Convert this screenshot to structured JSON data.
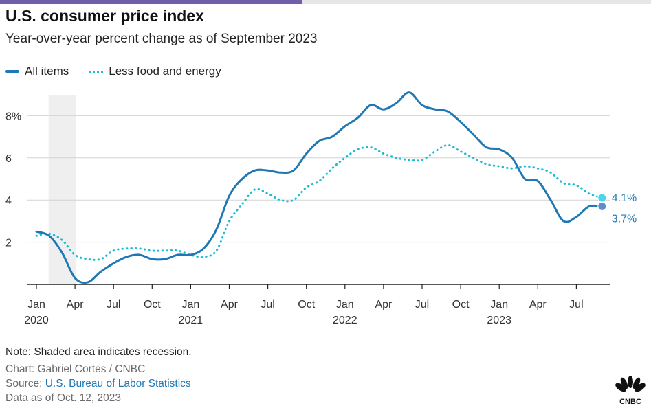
{
  "header": {
    "title": "U.S. consumer price index",
    "subtitle": "Year-over-year percent change as of September 2023"
  },
  "legend": {
    "all_items": "All items",
    "core": "Less food and energy"
  },
  "footer": {
    "note": "Note: Shaded area indicates recession.",
    "credit": "Chart: Gabriel Cortes / CNBC",
    "source_prefix": "Source: ",
    "source_link": "U.S. Bureau of Labor Statistics",
    "as_of": "Data as of Oct. 12, 2023"
  },
  "logo": {
    "text": "CNBC",
    "icon": "cnbc-peacock-icon"
  },
  "colors": {
    "all_items": "#1f78b4",
    "core": "#1bbcd6",
    "recession": "#efefef",
    "grid": "#d4d4d4"
  },
  "chart_data": {
    "type": "line",
    "ylim": [
      0,
      9
    ],
    "yticks": [
      2,
      4,
      6,
      8
    ],
    "ytick_labels": [
      "2",
      "4",
      "6",
      "8%"
    ],
    "x": [
      "2020-01",
      "2020-02",
      "2020-03",
      "2020-04",
      "2020-05",
      "2020-06",
      "2020-07",
      "2020-08",
      "2020-09",
      "2020-10",
      "2020-11",
      "2020-12",
      "2021-01",
      "2021-02",
      "2021-03",
      "2021-04",
      "2021-05",
      "2021-06",
      "2021-07",
      "2021-08",
      "2021-09",
      "2021-10",
      "2021-11",
      "2021-12",
      "2022-01",
      "2022-02",
      "2022-03",
      "2022-04",
      "2022-05",
      "2022-06",
      "2022-07",
      "2022-08",
      "2022-09",
      "2022-10",
      "2022-11",
      "2022-12",
      "2023-01",
      "2023-02",
      "2023-03",
      "2023-04",
      "2023-05",
      "2023-06",
      "2023-07",
      "2023-08",
      "2023-09"
    ],
    "xtick_labels": [
      {
        "month": "2020-01",
        "label": "Jan",
        "year": "2020"
      },
      {
        "month": "2020-04",
        "label": "Apr"
      },
      {
        "month": "2020-07",
        "label": "Jul"
      },
      {
        "month": "2020-10",
        "label": "Oct"
      },
      {
        "month": "2021-01",
        "label": "Jan",
        "year": "2021"
      },
      {
        "month": "2021-04",
        "label": "Apr"
      },
      {
        "month": "2021-07",
        "label": "Jul"
      },
      {
        "month": "2021-10",
        "label": "Oct"
      },
      {
        "month": "2022-01",
        "label": "Jan",
        "year": "2022"
      },
      {
        "month": "2022-04",
        "label": "Apr"
      },
      {
        "month": "2022-07",
        "label": "Jul"
      },
      {
        "month": "2022-10",
        "label": "Oct"
      },
      {
        "month": "2023-01",
        "label": "Jan",
        "year": "2023"
      },
      {
        "month": "2023-04",
        "label": "Apr"
      },
      {
        "month": "2023-07",
        "label": "Jul"
      }
    ],
    "recession": [
      "2020-02",
      "2020-04"
    ],
    "series": [
      {
        "name": "All items",
        "values": [
          2.5,
          2.3,
          1.5,
          0.3,
          0.1,
          0.6,
          1.0,
          1.3,
          1.4,
          1.2,
          1.2,
          1.4,
          1.4,
          1.7,
          2.6,
          4.2,
          5.0,
          5.4,
          5.4,
          5.3,
          5.4,
          6.2,
          6.8,
          7.0,
          7.5,
          7.9,
          8.5,
          8.3,
          8.6,
          9.1,
          8.5,
          8.3,
          8.2,
          7.7,
          7.1,
          6.5,
          6.4,
          6.0,
          5.0,
          4.9,
          4.0,
          3.0,
          3.2,
          3.7,
          3.7
        ],
        "end_label": "3.7%"
      },
      {
        "name": "Less food and energy",
        "values": [
          2.3,
          2.4,
          2.1,
          1.4,
          1.2,
          1.2,
          1.6,
          1.7,
          1.7,
          1.6,
          1.6,
          1.6,
          1.4,
          1.3,
          1.6,
          3.0,
          3.8,
          4.5,
          4.3,
          4.0,
          4.0,
          4.6,
          4.9,
          5.5,
          6.0,
          6.4,
          6.5,
          6.2,
          6.0,
          5.9,
          5.9,
          6.3,
          6.6,
          6.3,
          6.0,
          5.7,
          5.6,
          5.5,
          5.6,
          5.5,
          5.3,
          4.8,
          4.7,
          4.3,
          4.1
        ],
        "end_label": "4.1%"
      }
    ]
  }
}
